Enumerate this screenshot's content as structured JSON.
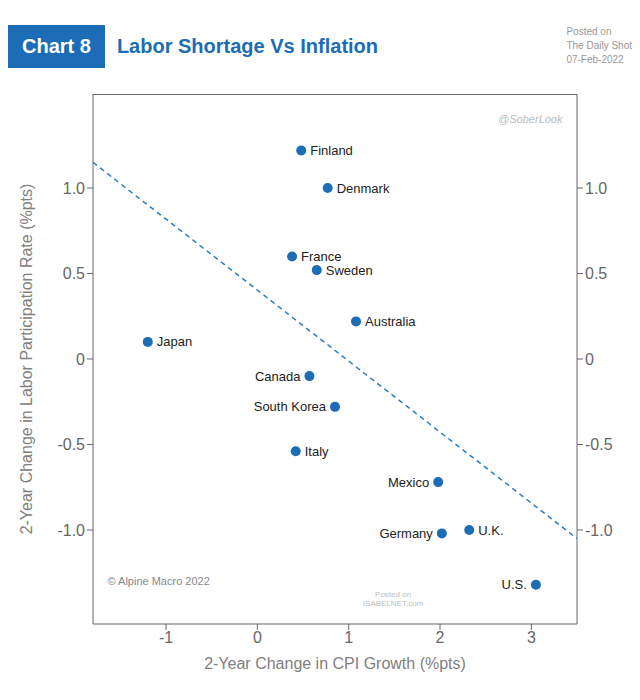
{
  "chart_data": {
    "type": "scatter",
    "title": "Labor Shortage Vs Inflation",
    "subtitle": "07-Feb-2022",
    "annotations": [
      "Chart 8",
      "Posted on",
      "The Daily Shot",
      "@SoberLook",
      "© Alpine Macro 2022",
      "Posted on\nISABELNET.com"
    ],
    "xlabel": "2-Year Change in CPI Growth (%pts)",
    "ylabel": "2-Year Change in Labor Participation Rate (%pts)",
    "xlim": [
      -1.8,
      3.5
    ],
    "ylim": [
      -1.55,
      1.55
    ],
    "xticks": [
      -1,
      0,
      1,
      2,
      3
    ],
    "yticks": [
      {
        "value": -1,
        "label": "-1.0"
      },
      -0.5,
      0,
      0.5,
      {
        "value": 1,
        "label": "1.0"
      }
    ],
    "y2lim": [
      -1.55,
      1.55
    ],
    "y2ticks": [
      {
        "value": -1,
        "label": "-1.0"
      },
      -0.5,
      0,
      0.5,
      {
        "value": 1,
        "label": "1.0"
      }
    ],
    "grid": false,
    "series": [
      {
        "type": "scatter",
        "color": "#1c6db5",
        "marker": "circle",
        "x": [
          -1.2,
          0.48,
          0.77,
          0.38,
          0.65,
          1.08,
          0.57,
          0.85,
          0.42,
          1.98,
          2.32,
          2.02,
          3.05
        ],
        "values": [
          0.1,
          1.22,
          1.0,
          0.6,
          0.52,
          0.22,
          -0.1,
          -0.28,
          -0.54,
          -0.72,
          -1.0,
          -1.02,
          -1.32
        ],
        "labels": [
          "Japan",
          "Finland",
          "Denmark",
          "France",
          "Sweden",
          "Australia",
          "Canada",
          "South Korea",
          "Italy",
          "Mexico",
          "U.K.",
          "Germany",
          "U.S."
        ]
      },
      {
        "type": "line",
        "color": "#2a7cc7",
        "line_style": "dashed",
        "x": [
          -1.8,
          3.5
        ],
        "values": [
          1.15,
          -1.05
        ]
      }
    ]
  }
}
